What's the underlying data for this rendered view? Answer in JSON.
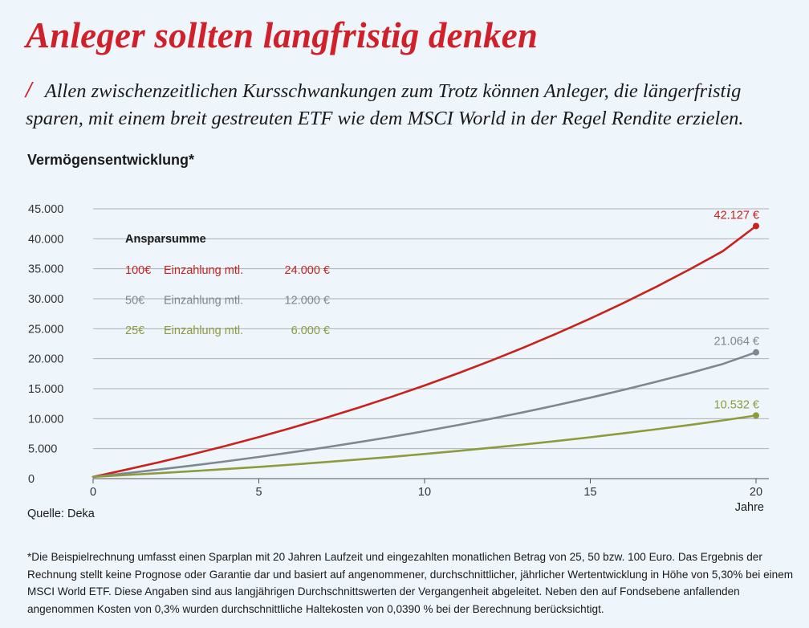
{
  "header": {
    "title": "Anleger sollten langfristig denken",
    "slash": "/",
    "subtitle": "Allen zwischenzeitlichen Kursschwankungen zum Trotz können Anleger, die längerfristig sparen, mit einem breit gestreuten ETF wie dem MSCI World in der Regel Rendite erzielen."
  },
  "chart_heading": "Vermögensentwicklung*",
  "source": "Quelle: Deka",
  "footnote": "*Die Beispielrechnung umfasst einen Sparplan mit 20 Jahren Laufzeit und eingezahlten monatlichen Betrag von 25, 50 bzw. 100 Euro. Das Ergebnis der Rechnung stellt keine Prognose oder Garantie dar und basiert auf angenommener, durchschnittlicher, jährlicher Wertentwicklung in Höhe von 5,30% bei einem MSCI World ETF. Diese Angaben sind aus langjährigen Durchschnittswerten der Vergangenheit abgeleitet. Neben den auf Fondsebene anfallenden angenommen Kosten von 0,3% wurden durchschnittliche Haltekosten von 0,0390 % bei der Berechnung berücksichtigt.",
  "chart_data": {
    "type": "line",
    "xlabel": "Jahre",
    "ylabel": "",
    "xlim": [
      0,
      20
    ],
    "ylim": [
      0,
      45000
    ],
    "x_ticks": [
      0,
      5,
      10,
      15,
      20
    ],
    "x_tick_labels": [
      "0",
      "5",
      "10",
      "15",
      "20"
    ],
    "y_ticks": [
      0,
      5000,
      10000,
      15000,
      20000,
      25000,
      30000,
      35000,
      40000,
      45000
    ],
    "y_tick_labels": [
      "0",
      "5.000",
      "10.000",
      "15.000",
      "20.000",
      "25.000",
      "30.000",
      "35.000",
      "40.000",
      "45.000"
    ],
    "grid": true,
    "x": [
      0,
      1,
      2,
      3,
      4,
      5,
      6,
      7,
      8,
      9,
      10,
      11,
      12,
      13,
      14,
      15,
      16,
      17,
      18,
      19,
      20
    ],
    "legend": {
      "title": "Ansparsumme",
      "placement": "top-left",
      "entries": [
        {
          "amount": "100€",
          "label": "Einzahlung mtl.",
          "total": "24.000 €",
          "color": "#c8221c"
        },
        {
          "amount": "50€",
          "label": "Einzahlung mtl.",
          "total": "12.000 €",
          "color": "#7f8890"
        },
        {
          "amount": "25€",
          "label": "Einzahlung mtl.",
          "total": "6.000 €",
          "color": "#8c9b3c"
        }
      ]
    },
    "series": [
      {
        "values": [
          300,
          1494,
          2751,
          4075,
          5470,
          6938,
          8486,
          10115,
          11831,
          13638,
          15541,
          17546,
          19658,
          21882,
          24224,
          26690,
          29288,
          32024,
          34906,
          37941,
          42127
        ],
        "color": "#c8221c",
        "end_label": "42.127 €"
      },
      {
        "values": [
          300,
          897,
          1526,
          2188,
          2885,
          3619,
          4393,
          5207,
          6065,
          6969,
          7921,
          8923,
          9979,
          11091,
          12262,
          13495,
          14794,
          16162,
          17603,
          19120,
          21064
        ],
        "color": "#7f8890",
        "end_label": "21.064 €"
      },
      {
        "values": [
          300,
          598,
          913,
          1244,
          1592,
          1960,
          2346,
          2754,
          3183,
          3635,
          4111,
          4612,
          5139,
          5695,
          6281,
          6897,
          7547,
          8231,
          8951,
          9710,
          10532
        ],
        "color": "#8c9b3c",
        "end_label": "10.532 €"
      }
    ]
  }
}
